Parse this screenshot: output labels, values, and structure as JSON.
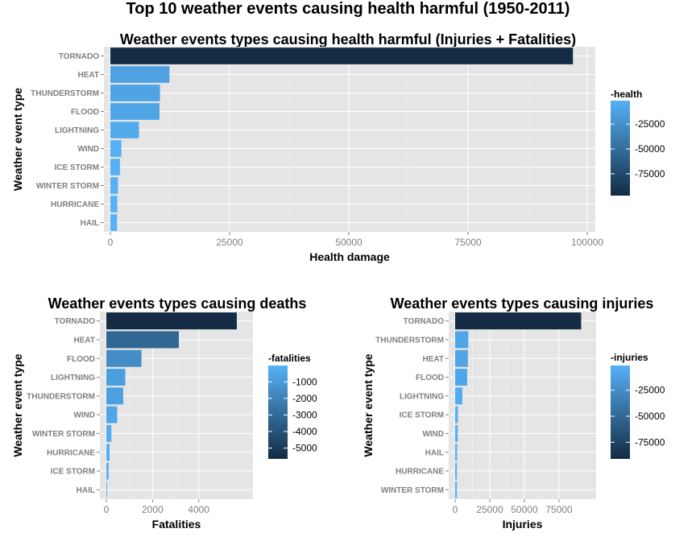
{
  "main_title": "Top 10 weather events causing health harmful (1950-2011)",
  "colors": {
    "low": "#56B1F7",
    "high": "#132B43",
    "panel": "#e5e5e5"
  },
  "chart_data": [
    {
      "id": "health",
      "type": "bar",
      "orientation": "horizontal",
      "title": "Weather events types causing health harmful (Injuries + Fatalities)",
      "xlabel": "Health damage",
      "ylabel": "Weather event type",
      "categories": [
        "TORNADO",
        "HEAT",
        "THUNDERSTORM",
        "FLOOD",
        "LIGHTNING",
        "WIND",
        "ICE STORM",
        "WINTER STORM",
        "HURRICANE",
        "HAIL"
      ],
      "values": [
        97000,
        12400,
        10400,
        10300,
        6000,
        2300,
        2000,
        1600,
        1450,
        1400
      ],
      "xlim": [
        0,
        100000
      ],
      "xticks": [
        "0",
        "25000",
        "50000",
        "75000",
        "100000"
      ],
      "xtick_values": [
        0,
        25000,
        50000,
        75000,
        100000
      ],
      "legend": {
        "title": "-health",
        "labels": [
          "-25000",
          "-50000",
          "-75000"
        ],
        "label_values": [
          -25000,
          -50000,
          -75000
        ]
      },
      "grid": true
    },
    {
      "id": "fatalities",
      "type": "bar",
      "orientation": "horizontal",
      "title": "Weather events types causing deaths",
      "xlabel": "Fatalities",
      "ylabel": "Weather event type",
      "categories": [
        "TORNADO",
        "HEAT",
        "FLOOD",
        "LIGHTNING",
        "THUNDERSTORM",
        "WIND",
        "WINTER STORM",
        "HURRICANE",
        "ICE STORM",
        "HAIL"
      ],
      "values": [
        5650,
        3140,
        1520,
        820,
        730,
        470,
        220,
        140,
        100,
        15
      ],
      "xlim": [
        0,
        6000
      ],
      "xticks": [
        "0",
        "2000",
        "4000"
      ],
      "xtick_values": [
        0,
        2000,
        4000
      ],
      "legend": {
        "title": "-fatalities",
        "labels": [
          "-1000",
          "-2000",
          "-3000",
          "-4000",
          "-5000"
        ],
        "label_values": [
          -1000,
          -2000,
          -3000,
          -4000,
          -5000
        ]
      },
      "grid": true
    },
    {
      "id": "injuries",
      "type": "bar",
      "orientation": "horizontal",
      "title": "Weather events types causing injuries",
      "xlabel": "Injuries",
      "ylabel": "Weather event type",
      "categories": [
        "TORNADO",
        "THUNDERSTORM",
        "HEAT",
        "FLOOD",
        "LIGHTNING",
        "ICE STORM",
        "WIND",
        "HAIL",
        "HURRICANE",
        "WINTER STORM"
      ],
      "values": [
        91000,
        9500,
        9200,
        8700,
        5200,
        2000,
        1900,
        1400,
        1300,
        1300
      ],
      "xlim": [
        0,
        96000
      ],
      "xticks": [
        "0",
        "25000",
        "50000",
        "75000"
      ],
      "xtick_values": [
        0,
        25000,
        50000,
        75000
      ],
      "legend": {
        "title": "-injuries",
        "labels": [
          "-25000",
          "-50000",
          "-75000"
        ],
        "label_values": [
          -25000,
          -50000,
          -75000
        ]
      },
      "grid": true
    }
  ]
}
